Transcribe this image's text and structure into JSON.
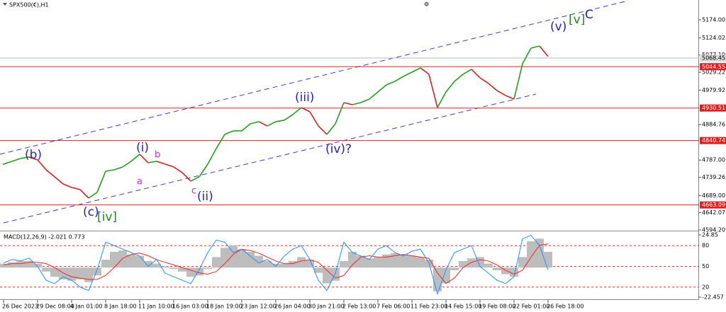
{
  "chart_data": [
    {
      "type": "line",
      "title": "SPX500(€),H1",
      "categories": [
        "26 Dec 2023",
        null,
        null,
        null,
        "29 Dec 08:00",
        null,
        null,
        null,
        "4 Jan 01:00",
        null,
        null,
        null,
        "8 Jan 18:00",
        null,
        null,
        null,
        "11 Jan 10:00",
        null,
        null,
        null,
        "16 Jan 03:00",
        null,
        null,
        null,
        "18 Jan 19:00",
        null,
        null,
        null,
        "23 Jan 12:00",
        null,
        null,
        null,
        "26 Jan 04:00",
        null,
        null,
        null,
        "30 Jan 21:00",
        null,
        null,
        null,
        "2 Feb 13:00",
        null,
        null,
        null,
        "7 Feb 06:00",
        null,
        null,
        null,
        "11 Feb 23:00",
        null,
        null,
        null,
        "14 Feb 15:00",
        null,
        null,
        null,
        "19 Feb 08:00",
        null,
        null,
        null,
        "22 Feb 01:00",
        null,
        null,
        null,
        "26 Feb 18:00"
      ],
      "series": [
        {
          "up_color": "#1fa01f",
          "down_color": "#d42020",
          "values": [
            4775.7,
            4783.5,
            4791.4,
            4795.3,
            4787.4,
            4760.1,
            4740.6,
            4721.1,
            4711.3,
            4705.5,
            4682.0,
            4697.7,
            4756.2,
            4760.1,
            4767.9,
            4783.5,
            4803.1,
            4779.6,
            4783.5,
            4775.7,
            4767.9,
            4752.3,
            4728.9,
            4740.6,
            4775.7,
            4818.7,
            4857.7,
            4867.5,
            4867.5,
            4887.0,
            4892.9,
            4881.1,
            4892.9,
            4896.8,
            4912.4,
            4931.9,
            4920.2,
            4881.1,
            4857.7,
            4887.0,
            4945.6,
            4939.7,
            4945.6,
            4955.3,
            4974.8,
            4994.4,
            5004.1,
            5017.8,
            5029.5,
            5041.2,
            5023.6,
            4931.9,
            4974.8,
            5004.1,
            5023.6,
            5037.3,
            5013.9,
            4998.3,
            4978.7,
            4965.1,
            4955.3,
            5052.9,
            5095.9,
            5101.7,
            5073.0
          ]
        }
      ],
      "ylim": [
        4592.2,
        5228.6
      ],
      "yticks": [
        {
          "value": 5174,
          "label": "5174.00"
        },
        5124.02,
        {
          "value": 5077.1,
          "label": "5077.10"
        },
        5029.22,
        4979.92,
        4884.76,
        {
          "value": 4787,
          "label": "4787.00"
        },
        4739.26,
        {
          "value": 4689,
          "label": "4689.00"
        },
        4642.07,
        {
          "value": 4594.2,
          "label": "4594.20"
        }
      ],
      "levels": [
        5044.55,
        4930.51,
        4840.74,
        4663.09
      ],
      "level_color": "#e02020",
      "last_price": 5068.45,
      "annotations": [
        "(b)",
        "(i)",
        "b",
        "a",
        "c",
        "(ii)",
        "(c)",
        "[iv]",
        "(iii)",
        "(iv)?",
        "(v)",
        "[v]",
        "C"
      ]
    },
    {
      "type": "macd",
      "title": "MACD(12,26,9) -2.021 0.773",
      "series": [
        {
          "type": "histogram",
          "color": "#bdbdbd",
          "values": [
            3,
            4,
            5,
            5,
            3,
            -3,
            -7,
            -9,
            -10,
            -9,
            -11,
            -6,
            6,
            12,
            13,
            10,
            9,
            5,
            3,
            1,
            -1,
            -3,
            -7,
            -6,
            -1,
            8,
            15,
            17,
            14,
            12,
            9,
            5,
            3,
            3,
            5,
            8,
            6,
            -4,
            -12,
            -10,
            5,
            12,
            9,
            7,
            8,
            10,
            11,
            10,
            9,
            8,
            6,
            -18,
            -12,
            -2,
            5,
            7,
            8,
            3,
            -2,
            -5,
            -7,
            8,
            20,
            22,
            12
          ]
        },
        {
          "type": "line",
          "color": "#ff2020",
          "values": [
            2,
            3,
            3,
            4,
            4,
            3,
            0,
            -4,
            -7,
            -8,
            -9,
            -9,
            -6,
            0,
            7,
            10,
            11,
            9,
            6,
            4,
            2,
            0,
            -2,
            -4,
            -5,
            -3,
            3,
            10,
            14,
            13,
            11,
            8,
            5,
            3,
            3,
            5,
            6,
            4,
            -2,
            -8,
            -6,
            2,
            8,
            9,
            8,
            8,
            9,
            10,
            9,
            8,
            7,
            -4,
            -12,
            -8,
            0,
            4,
            6,
            5,
            2,
            -2,
            -5,
            -2,
            8,
            17,
            18
          ]
        },
        {
          "type": "line",
          "color": "#1e90ff",
          "axis": "y2",
          "values": [
            55,
            60,
            58,
            62,
            50,
            30,
            25,
            35,
            30,
            20,
            15,
            45,
            85,
            80,
            75,
            70,
            65,
            50,
            60,
            40,
            35,
            30,
            25,
            45,
            70,
            88,
            85,
            70,
            75,
            65,
            55,
            60,
            50,
            65,
            75,
            80,
            60,
            30,
            15,
            40,
            85,
            70,
            65,
            60,
            75,
            80,
            70,
            65,
            72,
            75,
            55,
            10,
            45,
            70,
            75,
            80,
            50,
            40,
            30,
            25,
            35,
            90,
            95,
            80,
            45
          ]
        }
      ],
      "ylim": [
        -24.09,
        27.57
      ],
      "yticks": [
        24.85,
        -22.457
      ],
      "y2lim": [
        2.4,
        100.7
      ],
      "y2ticks": [
        80,
        50,
        20
      ],
      "y2_line_color": "#e03030"
    }
  ]
}
